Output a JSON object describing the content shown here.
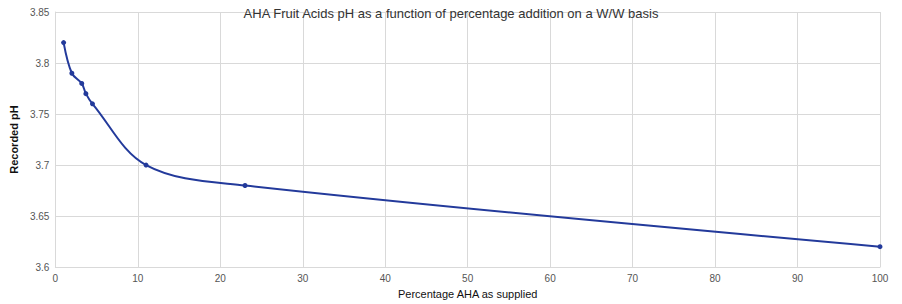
{
  "chart_data": {
    "type": "line",
    "title": "AHA Fruit Acids pH as a function of percentage addition on a W/W basis",
    "x_label": "Percentage AHA as supplied",
    "y_label": "Recorded pH",
    "x": [
      1,
      2,
      3.2,
      3.7,
      4.5,
      11,
      23,
      100
    ],
    "values": [
      3.82,
      3.79,
      3.78,
      3.77,
      3.76,
      3.7,
      3.68,
      3.62
    ],
    "color": "#233a9b",
    "marker": "circle",
    "line_style": "solid",
    "xlim": [
      0,
      100
    ],
    "xticks": [
      0,
      10,
      20,
      30,
      40,
      50,
      60,
      70,
      80,
      90,
      100
    ],
    "ylim": [
      3.6,
      3.85
    ],
    "yticks": [
      3.6,
      3.65,
      3.7,
      3.75,
      3.8,
      3.85
    ],
    "grid": true
  }
}
